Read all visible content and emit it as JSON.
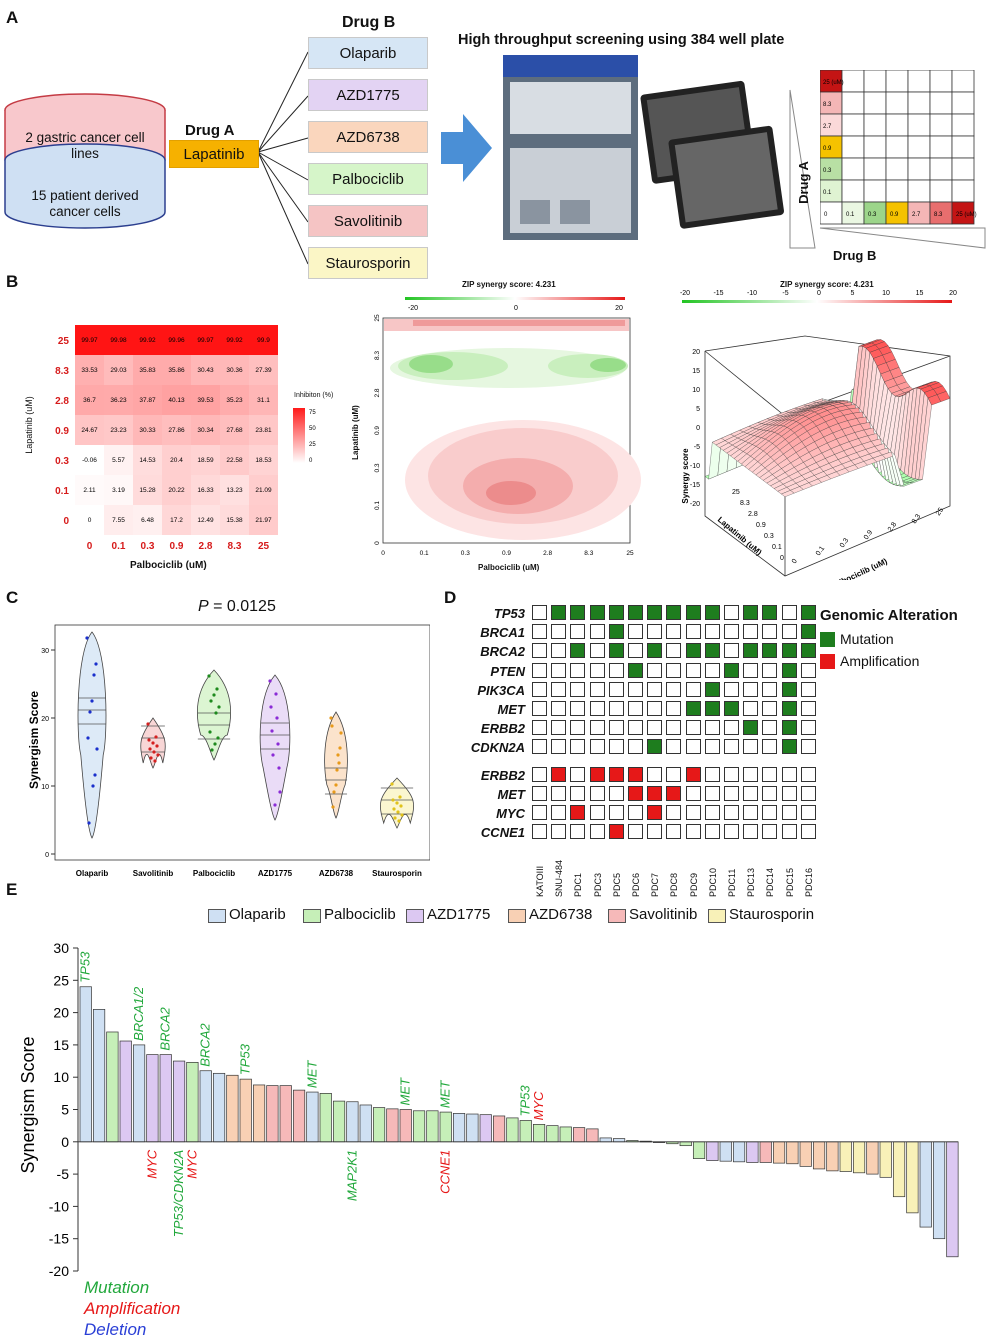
{
  "panel_labels": [
    "A",
    "B",
    "C",
    "D",
    "E"
  ],
  "panelA": {
    "cylinder_top": "2 gastric cancer cell lines",
    "cylinder_bottom": "15 patient derived cancer cells",
    "drugA_title": "Drug A",
    "drugA": "Lapatinib",
    "drugB_title": "Drug B",
    "drugB": [
      {
        "name": "Olaparib",
        "color": "#d6e6f5"
      },
      {
        "name": "AZD1775",
        "color": "#e3d3f3"
      },
      {
        "name": "AZD6738",
        "color": "#fad6bd"
      },
      {
        "name": "Palbociclib",
        "color": "#d6f5c9"
      },
      {
        "name": "Savolitinib",
        "color": "#f5c4c4"
      },
      {
        "name": "Staurosporin",
        "color": "#fbf6c6"
      }
    ],
    "screening_title": "High throughput screening using 384 well plate",
    "mini_grid_a_values": [
      "25 (uM)",
      "8.3",
      "2.7",
      "0.9",
      "0.3",
      "0.1"
    ],
    "mini_grid_b_values": [
      "0",
      "0.1",
      "0.3",
      "0.9",
      "2.7",
      "8.3",
      "25 (uM)"
    ],
    "mini_axis_a": "Drug A",
    "mini_axis_b": "Drug B"
  },
  "panelB": {
    "heatmap": {
      "row_labels": [
        "25",
        "8.3",
        "2.8",
        "0.9",
        "0.3",
        "0.1",
        "0"
      ],
      "col_labels": [
        "0",
        "0.1",
        "0.3",
        "0.9",
        "2.8",
        "8.3",
        "25"
      ],
      "values": [
        [
          "99.97",
          "99.98",
          "99.92",
          "99.96",
          "99.97",
          "99.92",
          "99.9"
        ],
        [
          "33.53",
          "29.03",
          "35.83",
          "35.86",
          "30.43",
          "30.36",
          "27.39"
        ],
        [
          "36.7",
          "36.23",
          "37.87",
          "40.13",
          "39.53",
          "35.23",
          "31.1"
        ],
        [
          "24.67",
          "23.23",
          "30.33",
          "27.86",
          "30.34",
          "27.68",
          "23.81"
        ],
        [
          "-0.06",
          "5.57",
          "14.53",
          "20.4",
          "18.59",
          "22.58",
          "18.53"
        ],
        [
          "2.11",
          "3.19",
          "15.28",
          "20.22",
          "16.33",
          "13.23",
          "21.09"
        ],
        [
          "0",
          "7.55",
          "6.48",
          "17.2",
          "12.49",
          "15.38",
          "21.97"
        ]
      ],
      "xlabel": "Palbociclib (uM)",
      "ylabel": "Lapatinib (uM)",
      "legend_title": "Inhibiton (%)",
      "legend_ticks": [
        "75",
        "50",
        "25",
        "0"
      ]
    },
    "contour": {
      "title": "ZIP synergy score: 4.231",
      "scale_ticks": [
        "-20",
        "0",
        "20"
      ],
      "xlabel": "Palbociclib (uM)",
      "ylabel": "Lapatinib (uM)",
      "x_ticks": [
        "0",
        "0.1",
        "0.3",
        "0.9",
        "2.8",
        "8.3",
        "25"
      ],
      "y_ticks": [
        "0",
        "0.1",
        "0.3",
        "0.9",
        "2.8",
        "8.3",
        "25"
      ]
    },
    "surface": {
      "title": "ZIP synergy score: 4.231",
      "scale_ticks": [
        "-20",
        "-15",
        "-10",
        "-5",
        "0",
        "5",
        "10",
        "15",
        "20"
      ],
      "zlabel": "Synergy score",
      "z_ticks": [
        "20",
        "15",
        "10",
        "5",
        "0",
        "-5",
        "-10",
        "-15",
        "-20"
      ],
      "xlabel": "Palbociclib (uM)",
      "ylabel": "Lapatinib (uM)",
      "x_ticks": [
        "0",
        "0.1",
        "0.3",
        "0.9",
        "2.8",
        "8.3",
        "25"
      ],
      "y_ticks": [
        "25",
        "8.3",
        "2.8",
        "0.9",
        "0.3",
        "0.1",
        "0"
      ]
    }
  },
  "panelC": {
    "title": "P = 0.0125",
    "title_p": "P",
    "title_rest": " = 0.0125",
    "ylabel": "Synergism Score",
    "y_ticks": [
      "30",
      "20",
      "10",
      "0"
    ],
    "groups": [
      {
        "name": "Olaparib",
        "color": "#1a2fcc",
        "fill": "#ddeaf7"
      },
      {
        "name": "Savolitinib",
        "color": "#d42020",
        "fill": "#f8d6d6"
      },
      {
        "name": "Palbociclib",
        "color": "#1e8a1e",
        "fill": "#dcf5d2"
      },
      {
        "name": "AZD1775",
        "color": "#8a2bd6",
        "fill": "#eadcf7"
      },
      {
        "name": "AZD6738",
        "color": "#e89a1a",
        "fill": "#fbe3cc"
      },
      {
        "name": "Staurosporin",
        "color": "#e0c21a",
        "fill": "#fbf6d0"
      }
    ]
  },
  "panelD": {
    "legend_title": "Genomic Alteration",
    "legend_items": [
      {
        "label": "Mutation",
        "color": "#1e7d1e"
      },
      {
        "label": "Amplification",
        "color": "#e61818"
      }
    ],
    "mutation_genes": [
      "TP53",
      "BRCA1",
      "BRCA2",
      "PTEN",
      "PIK3CA",
      "MET",
      "ERBB2",
      "CDKN2A"
    ],
    "amplification_genes": [
      "ERBB2",
      "MET",
      "MYC",
      "CCNE1"
    ],
    "samples": [
      "KATOIII",
      "SNU-484",
      "PDC1",
      "PDC3",
      "PDC5",
      "PDC6",
      "PDC7",
      "PDC8",
      "PDC9",
      "PDC10",
      "PDC11",
      "PDC13",
      "PDC14",
      "PDC15",
      "PDC16"
    ],
    "mutation_matrix": [
      [
        0,
        1,
        1,
        1,
        1,
        1,
        1,
        1,
        1,
        1,
        0,
        1,
        1,
        0,
        1
      ],
      [
        0,
        0,
        0,
        0,
        1,
        0,
        0,
        0,
        0,
        0,
        0,
        0,
        0,
        0,
        1
      ],
      [
        0,
        0,
        1,
        0,
        1,
        0,
        1,
        0,
        1,
        1,
        0,
        1,
        1,
        1,
        1
      ],
      [
        0,
        0,
        0,
        0,
        0,
        1,
        0,
        0,
        0,
        0,
        1,
        0,
        0,
        1,
        0
      ],
      [
        0,
        0,
        0,
        0,
        0,
        0,
        0,
        0,
        0,
        1,
        0,
        0,
        0,
        1,
        0
      ],
      [
        0,
        0,
        0,
        0,
        0,
        0,
        0,
        0,
        1,
        1,
        1,
        0,
        0,
        1,
        0
      ],
      [
        0,
        0,
        0,
        0,
        0,
        0,
        0,
        0,
        0,
        0,
        0,
        1,
        0,
        1,
        0
      ],
      [
        0,
        0,
        0,
        0,
        0,
        0,
        1,
        0,
        0,
        0,
        0,
        0,
        0,
        1,
        0
      ]
    ],
    "amplification_matrix": [
      [
        0,
        1,
        0,
        1,
        1,
        1,
        0,
        0,
        1,
        0,
        0,
        0,
        0,
        0,
        0
      ],
      [
        0,
        0,
        0,
        0,
        0,
        1,
        1,
        1,
        0,
        0,
        0,
        0,
        0,
        0,
        0
      ],
      [
        0,
        0,
        1,
        0,
        0,
        0,
        1,
        0,
        0,
        0,
        0,
        0,
        0,
        0,
        0
      ],
      [
        0,
        0,
        0,
        0,
        1,
        0,
        0,
        0,
        0,
        0,
        0,
        0,
        0,
        0,
        0
      ]
    ]
  },
  "chart_data": {
    "type": "bar",
    "title": "",
    "xlabel": "",
    "ylabel": "Synergism Score",
    "ylim": [
      -20,
      30
    ],
    "y_ticks": [
      30,
      25,
      20,
      15,
      10,
      5,
      0,
      -5,
      -10,
      -15,
      -20
    ],
    "legend": [
      {
        "name": "Olaparib",
        "color": "#cfe0f3"
      },
      {
        "name": "Palbociclib",
        "color": "#c6efb8"
      },
      {
        "name": "AZD1775",
        "color": "#dcc8f2"
      },
      {
        "name": "AZD6738",
        "color": "#f8d0b4"
      },
      {
        "name": "Savolitinib",
        "color": "#f6b9b9"
      },
      {
        "name": "Staurosporin",
        "color": "#f8f1b8"
      }
    ],
    "values": [
      24,
      20.5,
      17,
      15.6,
      15,
      13.5,
      13.5,
      12.5,
      12.3,
      11,
      10.6,
      10.3,
      9.7,
      8.8,
      8.7,
      8.7,
      8,
      7.7,
      7.5,
      6.3,
      6.2,
      5.7,
      5.3,
      5.1,
      5,
      4.8,
      4.8,
      4.6,
      4.4,
      4.3,
      4.2,
      4,
      3.7,
      3.3,
      2.7,
      2.5,
      2.3,
      2.2,
      2,
      0.6,
      0.5,
      0.2,
      0.1,
      -0.1,
      -0.3,
      -0.6,
      -2.6,
      -2.9,
      -3,
      -3.1,
      -3.2,
      -3.2,
      -3.3,
      -3.4,
      -3.8,
      -4.2,
      -4.5,
      -4.6,
      -4.8,
      -5,
      -5.5,
      -8.5,
      -11,
      -13.2,
      -15,
      -17.8
    ],
    "series_index": [
      0,
      0,
      1,
      2,
      0,
      2,
      2,
      2,
      1,
      0,
      0,
      3,
      3,
      3,
      4,
      4,
      4,
      0,
      1,
      1,
      0,
      0,
      1,
      4,
      4,
      1,
      1,
      1,
      0,
      0,
      2,
      4,
      1,
      1,
      1,
      1,
      1,
      4,
      4,
      0,
      0,
      1,
      1,
      2,
      1,
      1,
      1,
      2,
      0,
      0,
      2,
      4,
      3,
      3,
      3,
      3,
      3,
      5,
      5,
      3,
      5,
      5,
      5,
      0,
      0,
      2
    ],
    "annotations_top": [
      {
        "bar": 0,
        "text": "TP53",
        "color": "#22a83c"
      },
      {
        "bar": 4,
        "text": "BRCA1/2",
        "color": "#22a83c"
      },
      {
        "bar": 6,
        "text": "BRCA2",
        "color": "#22a83c"
      },
      {
        "bar": 9,
        "text": "BRCA2",
        "color": "#22a83c"
      },
      {
        "bar": 12,
        "text": "TP53",
        "color": "#22a83c"
      },
      {
        "bar": 17,
        "text": "MET",
        "color": "#22a83c"
      },
      {
        "bar": 24,
        "text": "MET",
        "color": "#22a83c"
      },
      {
        "bar": 27,
        "text": "MET",
        "color": "#22a83c"
      },
      {
        "bar": 33,
        "text": "TP53",
        "color": "#22a83c"
      },
      {
        "bar": 34,
        "text": "MYC",
        "color": "#e61818"
      }
    ],
    "annotations_bottom": [
      {
        "bar": 5,
        "text": "MYC",
        "color": "#e61818"
      },
      {
        "bar": 7,
        "text": "TP53/CDKN2A",
        "color": "#22a83c"
      },
      {
        "bar": 8,
        "text": "MYC",
        "color": "#e61818"
      },
      {
        "bar": 20,
        "text": "MAP2K1",
        "color": "#22a83c"
      },
      {
        "bar": 27,
        "text": "CCNE1",
        "color": "#e61818"
      }
    ],
    "key": [
      {
        "text": "Mutation",
        "color": "#22a83c"
      },
      {
        "text": "Amplification",
        "color": "#e61818"
      },
      {
        "text": "Deletion",
        "color": "#2a3fd6"
      }
    ]
  }
}
